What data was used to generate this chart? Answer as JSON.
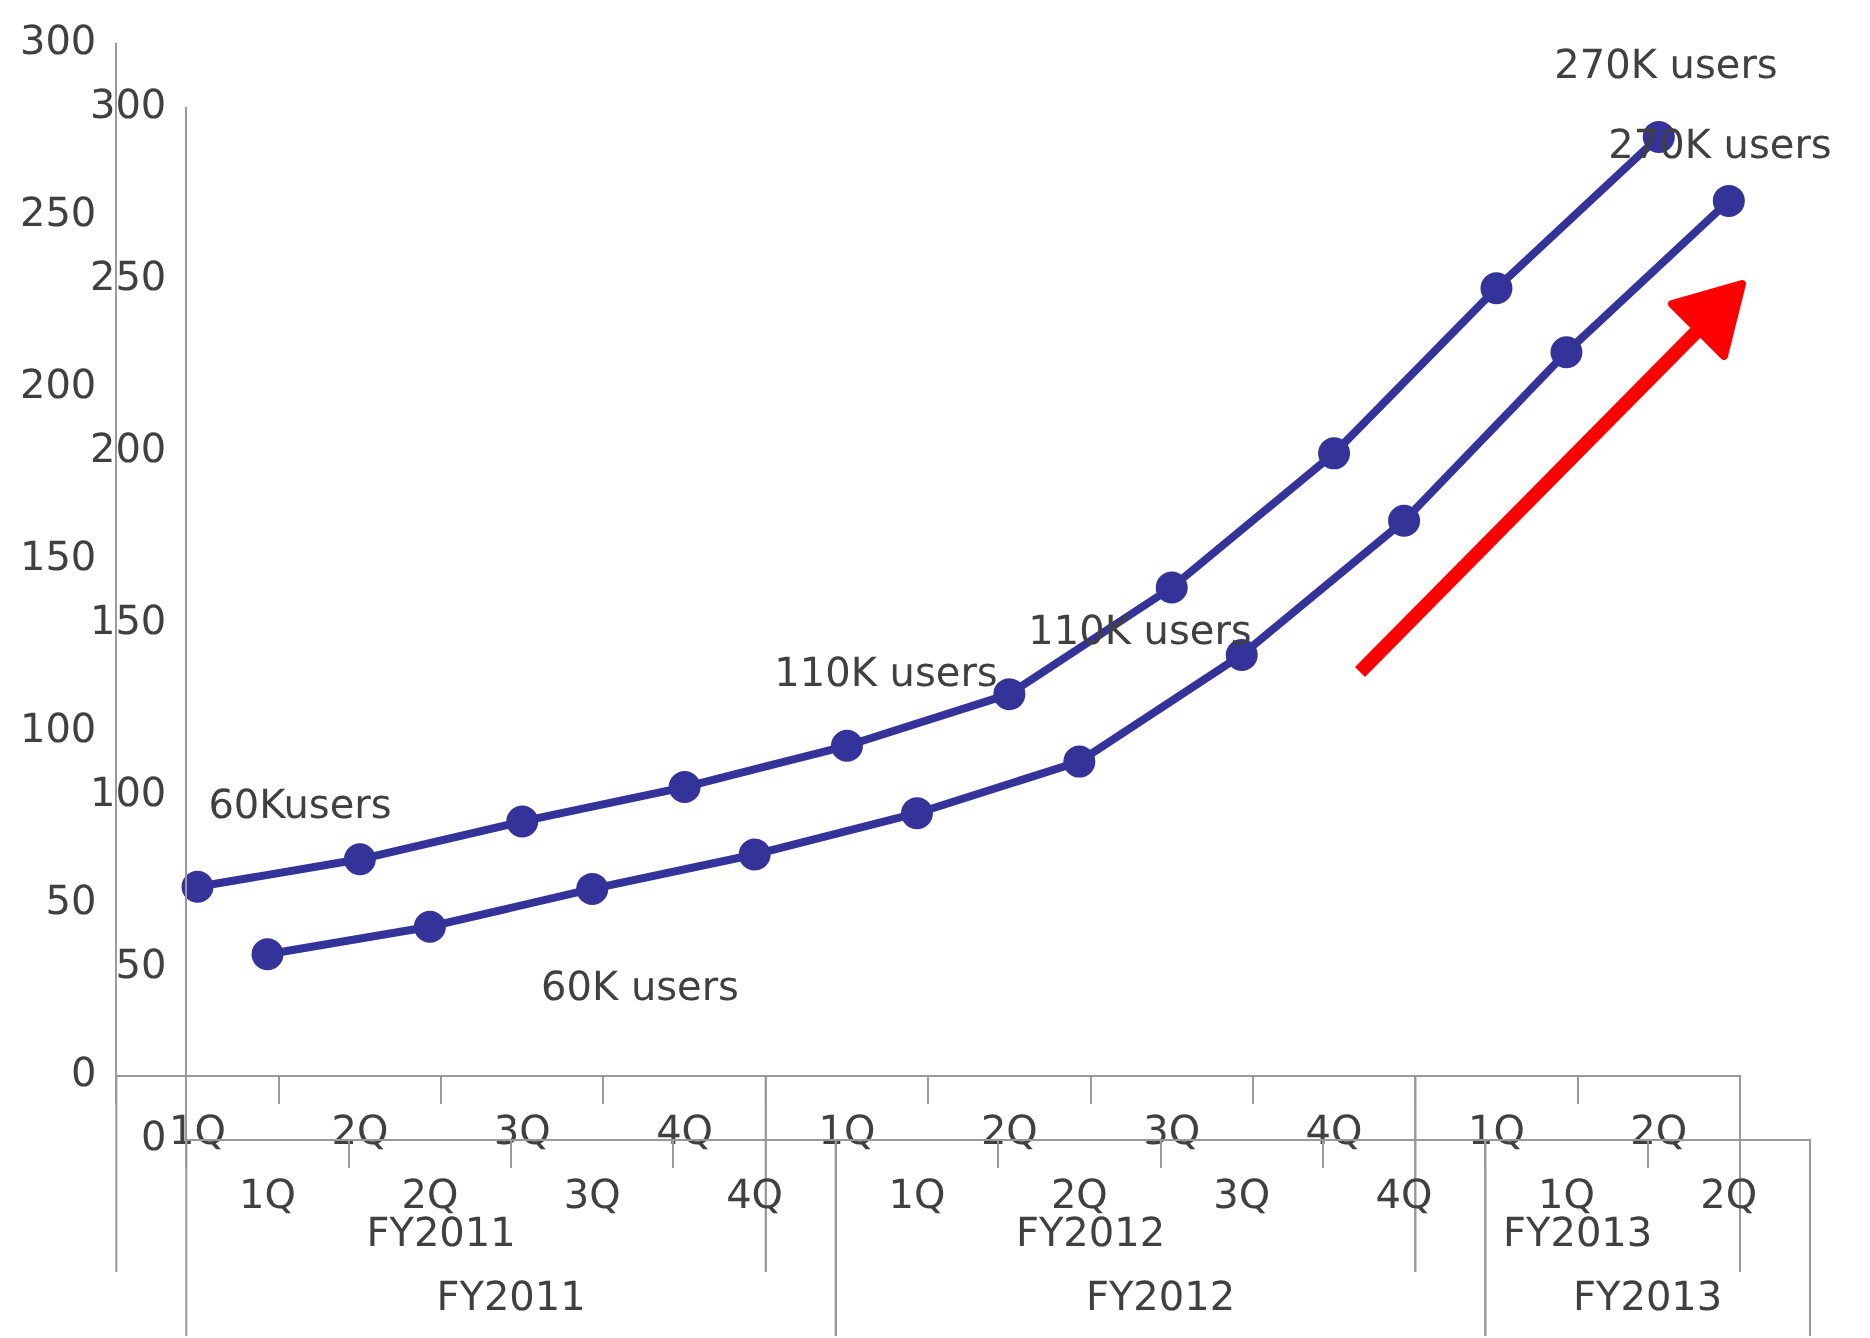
{
  "chart_data": [
    {
      "type": "line",
      "categories": [
        "1Q",
        "2Q",
        "3Q",
        "4Q",
        "1Q",
        "2Q",
        "3Q",
        "4Q",
        "1Q",
        "2Q"
      ],
      "series": [
        {
          "color": "#333399",
          "values": [
            55,
            63,
            74,
            84,
            96,
            111,
            142,
            181,
            229,
            273
          ]
        }
      ],
      "annotations": [
        "FY2011",
        "FY2012",
        "FY2013",
        "60Kusers",
        "110K users",
        "270K users"
      ],
      "ylim": [
        0,
        300
      ],
      "yticks": [
        0,
        50,
        100,
        150,
        200,
        250,
        300
      ],
      "marker": "circle",
      "grid": false,
      "legend": false
    },
    {
      "type": "line",
      "categories": [
        "1Q",
        "2Q",
        "3Q",
        "4Q",
        "1Q",
        "2Q",
        "3Q",
        "4Q",
        "1Q",
        "2Q"
      ],
      "series": [
        {
          "color": "#333399",
          "values": [
            54,
            62,
            73,
            83,
            95,
            110,
            141,
            180,
            229,
            273
          ]
        }
      ],
      "annotations": [
        "FY2011",
        "FY2012",
        "FY2013",
        "60K users",
        "110K users",
        "270K users"
      ],
      "ylim": [
        0,
        300
      ],
      "yticks": [
        0,
        50,
        100,
        150,
        200,
        250,
        300
      ],
      "marker": "circle",
      "grid": false,
      "legend": false
    }
  ]
}
